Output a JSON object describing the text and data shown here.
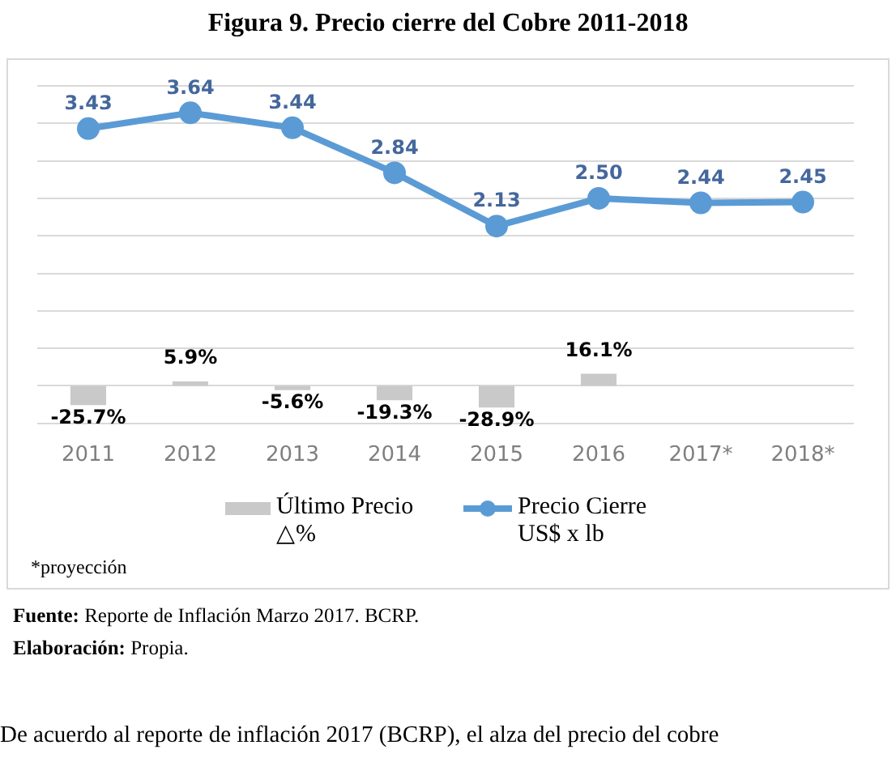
{
  "chart_data": {
    "type": "bar",
    "title": "Figura 9. Precio cierre del Cobre 2011-2018",
    "categories": [
      "2011",
      "2012",
      "2013",
      "2014",
      "2015",
      "2016",
      "2017*",
      "2018*"
    ],
    "series": [
      {
        "name": "Último Precio △%",
        "axis": "y2",
        "color": "#c9c9c9",
        "values": [
          -25.7,
          5.9,
          -5.6,
          -19.3,
          -28.9,
          16.1,
          null,
          null
        ],
        "value_labels": [
          "-25.7%",
          "5.9%",
          "-5.6%",
          "-19.3%",
          "-28.9%",
          "16.1%",
          null,
          null
        ]
      },
      {
        "name": "Precio Cierre US$ x lb",
        "type": "line",
        "color": "#5b9bd5",
        "values": [
          3.43,
          3.64,
          3.44,
          2.84,
          2.13,
          2.5,
          2.44,
          2.45
        ],
        "value_labels": [
          "3.43",
          "3.64",
          "3.44",
          "2.84",
          "2.13",
          "2.50",
          "2.44",
          "2.45"
        ]
      }
    ],
    "ylim": [
      -0.5,
      4.0
    ],
    "yticks": [
      {
        "value": -0.5,
        "label": null
      },
      {
        "value": 0,
        "label": null
      },
      {
        "value": 0.5,
        "label": null
      },
      {
        "value": 1.0,
        "label": null
      },
      {
        "value": 1.5,
        "label": null
      },
      {
        "value": 2.0,
        "label": null
      },
      {
        "value": 2.5,
        "label": null
      },
      {
        "value": 3.0,
        "label": null
      },
      {
        "value": 3.5,
        "label": null
      },
      {
        "value": 4.0,
        "label": null
      }
    ],
    "y2lim": [
      -50,
      400
    ],
    "grid": "y",
    "tick_labels": "x",
    "legend": "bottom",
    "marker": "circle",
    "line_style": "solid",
    "annotations": [
      "*proyección",
      "Fuente: Reporte de Inflación Marzo 2017. BCRP.",
      "Elaboración: Propia.",
      "De acuerdo al reporte de inflación 2017 (BCRP), el alza del precio del cobre"
    ]
  }
}
